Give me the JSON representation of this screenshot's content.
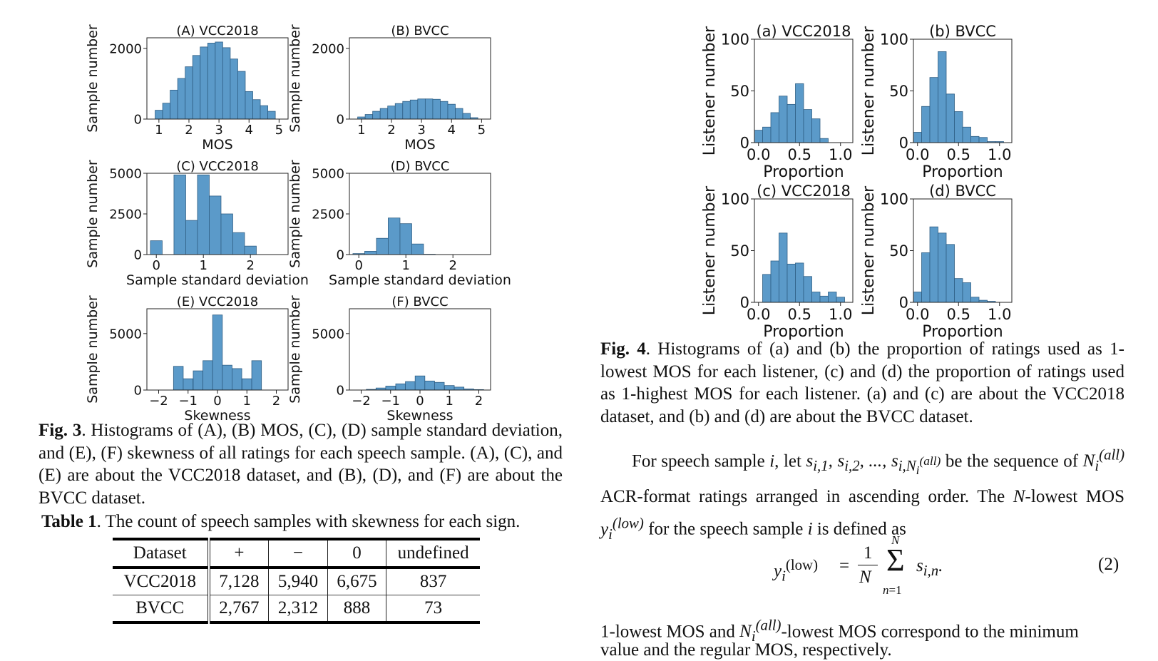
{
  "fig3_panels": [
    {
      "title": "(A) VCC2018",
      "xlabel": "MOS",
      "ylabel": "Sample number",
      "xlim": [
        0.6,
        5.3
      ],
      "ylim": [
        0,
        2300
      ],
      "xticks": [
        1,
        2,
        3,
        4,
        5
      ],
      "xtick_labels": [
        "1",
        "2",
        "3",
        "4",
        "5"
      ],
      "yticks": [
        0,
        2000
      ],
      "ytick_labels": [
        "0",
        "2000"
      ]
    },
    {
      "title": "(B) BVCC",
      "xlabel": "MOS",
      "ylabel": "Sample number",
      "xlim": [
        0.6,
        5.3
      ],
      "ylim": [
        0,
        2300
      ],
      "xticks": [
        1,
        2,
        3,
        4,
        5
      ],
      "xtick_labels": [
        "1",
        "2",
        "3",
        "4",
        "5"
      ],
      "yticks": [
        0,
        2000
      ],
      "ytick_labels": [
        "0",
        "2000"
      ]
    },
    {
      "title": "(C) VCC2018",
      "xlabel": "Sample standard deviation",
      "ylabel": "Sample number",
      "xlim": [
        -0.2,
        2.8
      ],
      "ylim": [
        0,
        5000
      ],
      "xticks": [
        0,
        1,
        2
      ],
      "xtick_labels": [
        "0",
        "1",
        "2"
      ],
      "yticks": [
        0,
        2500,
        5000
      ],
      "ytick_labels": [
        "0",
        "2500",
        "5000"
      ]
    },
    {
      "title": "(D) BVCC",
      "xlabel": "Sample standard deviation",
      "ylabel": "Sample number",
      "xlim": [
        -0.2,
        2.8
      ],
      "ylim": [
        0,
        5000
      ],
      "xticks": [
        0,
        1,
        2
      ],
      "xtick_labels": [
        "0",
        "1",
        "2"
      ],
      "yticks": [
        0,
        2500,
        5000
      ],
      "ytick_labels": [
        "0",
        "2500",
        "5000"
      ]
    },
    {
      "title": "(E) VCC2018",
      "xlabel": "Skewness",
      "ylabel": "Sample number",
      "xlim": [
        -2.4,
        2.4
      ],
      "ylim": [
        0,
        7200
      ],
      "xticks": [
        -2,
        -1,
        0,
        1,
        2
      ],
      "xtick_labels": [
        "−2",
        "−1",
        "0",
        "1",
        "2"
      ],
      "yticks": [
        0,
        5000
      ],
      "ytick_labels": [
        "0",
        "5000"
      ]
    },
    {
      "title": "(F) BVCC",
      "xlabel": "Skewness",
      "ylabel": "Sample number",
      "xlim": [
        -2.4,
        2.4
      ],
      "ylim": [
        0,
        7200
      ],
      "xticks": [
        -2,
        -1,
        0,
        1,
        2
      ],
      "xtick_labels": [
        "−2",
        "−1",
        "0",
        "1",
        "2"
      ],
      "yticks": [
        0,
        5000
      ],
      "ytick_labels": [
        "0",
        "5000"
      ]
    }
  ],
  "fig4_panels": [
    {
      "title": "(a) VCC2018",
      "xlabel": "Proportion",
      "ylabel": "Listener number",
      "xlim": [
        -0.05,
        1.15
      ],
      "ylim": [
        0,
        100
      ],
      "xticks": [
        0,
        0.5,
        1
      ],
      "xtick_labels": [
        "0.0",
        "0.5",
        "1.0"
      ],
      "yticks": [
        0,
        50,
        100
      ],
      "ytick_labels": [
        "0",
        "50",
        "100"
      ]
    },
    {
      "title": "(b) BVCC",
      "xlabel": "Proportion",
      "ylabel": "Listener number",
      "xlim": [
        -0.05,
        1.15
      ],
      "ylim": [
        0,
        100
      ],
      "xticks": [
        0,
        0.5,
        1
      ],
      "xtick_labels": [
        "0.0",
        "0.5",
        "1.0"
      ],
      "yticks": [
        0,
        50,
        100
      ],
      "ytick_labels": [
        "0",
        "50",
        "100"
      ]
    },
    {
      "title": "(c) VCC2018",
      "xlabel": "Proportion",
      "ylabel": "Listener number",
      "xlim": [
        -0.05,
        1.15
      ],
      "ylim": [
        0,
        100
      ],
      "xticks": [
        0,
        0.5,
        1
      ],
      "xtick_labels": [
        "0.0",
        "0.5",
        "1.0"
      ],
      "yticks": [
        0,
        50,
        100
      ],
      "ytick_labels": [
        "0",
        "50",
        "100"
      ]
    },
    {
      "title": "(d) BVCC",
      "xlabel": "Proportion",
      "ylabel": "Listener number",
      "xlim": [
        -0.05,
        1.15
      ],
      "ylim": [
        0,
        100
      ],
      "xticks": [
        0,
        0.5,
        1
      ],
      "xtick_labels": [
        "0.0",
        "0.5",
        "1.0"
      ],
      "yticks": [
        0,
        50,
        100
      ],
      "ytick_labels": [
        "0",
        "50",
        "100"
      ]
    }
  ],
  "chart_data": [
    {
      "type": "bar",
      "panel": "(A) VCC2018",
      "x": [
        1.0,
        1.25,
        1.5,
        1.75,
        2.0,
        2.25,
        2.5,
        2.75,
        3.0,
        3.25,
        3.5,
        3.75,
        4.0,
        4.25,
        4.5,
        4.75
      ],
      "values": [
        250,
        450,
        820,
        1150,
        1480,
        1800,
        2040,
        2150,
        2180,
        2020,
        1700,
        1350,
        780,
        550,
        380,
        220
      ],
      "bin_width": 0.25,
      "ylim": [
        0,
        2300
      ]
    },
    {
      "type": "bar",
      "panel": "(B) BVCC",
      "x": [
        1.0,
        1.25,
        1.5,
        1.75,
        2.0,
        2.25,
        2.5,
        2.75,
        3.0,
        3.25,
        3.5,
        3.75,
        4.0,
        4.25,
        4.5,
        4.75
      ],
      "values": [
        60,
        130,
        220,
        300,
        370,
        440,
        500,
        540,
        570,
        570,
        560,
        500,
        420,
        300,
        160,
        40
      ],
      "bin_width": 0.25,
      "ylim": [
        0,
        2300
      ]
    },
    {
      "type": "bar",
      "panel": "(C) VCC2018",
      "x": [
        0.0,
        0.25,
        0.5,
        0.75,
        1.0,
        1.25,
        1.5,
        1.75,
        2.0,
        2.25,
        2.5
      ],
      "values": [
        850,
        0,
        4900,
        2100,
        4900,
        3600,
        2500,
        1350,
        520,
        0,
        0
      ],
      "bin_width": 0.25,
      "ylim": [
        0,
        5000
      ]
    },
    {
      "type": "bar",
      "panel": "(D) BVCC",
      "x": [
        0.0,
        0.25,
        0.5,
        0.75,
        1.0,
        1.25,
        1.5,
        1.75,
        2.0,
        2.25,
        2.5
      ],
      "values": [
        60,
        200,
        1000,
        2250,
        1900,
        650,
        20,
        0,
        0,
        0,
        0
      ],
      "bin_width": 0.25,
      "ylim": [
        0,
        5000
      ]
    },
    {
      "type": "bar",
      "panel": "(E) VCC2018",
      "x": [
        -2.0,
        -1.66,
        -1.33,
        -1.0,
        -0.66,
        -0.33,
        0.0,
        0.33,
        0.66,
        1.0,
        1.33,
        1.66,
        2.0
      ],
      "values": [
        0,
        0,
        2100,
        1000,
        1700,
        2600,
        6650,
        2200,
        1900,
        1000,
        2600,
        0,
        0
      ],
      "bin_width": 0.33,
      "ylim": [
        0,
        7200
      ]
    },
    {
      "type": "bar",
      "panel": "(F) BVCC",
      "x": [
        -2.0,
        -1.66,
        -1.33,
        -1.0,
        -0.66,
        -0.33,
        0.0,
        0.33,
        0.66,
        1.0,
        1.33,
        1.66,
        2.0
      ],
      "values": [
        0,
        60,
        180,
        350,
        550,
        750,
        1250,
        800,
        680,
        400,
        260,
        100,
        40
      ],
      "bin_width": 0.33,
      "ylim": [
        0,
        7200
      ]
    },
    {
      "type": "bar",
      "panel": "(a) VCC2018",
      "x": [
        0.0,
        0.1,
        0.2,
        0.3,
        0.4,
        0.5,
        0.6,
        0.7,
        0.8,
        0.9,
        1.0
      ],
      "values": [
        12,
        15,
        29,
        45,
        37,
        57,
        32,
        23,
        4,
        0,
        0
      ],
      "bin_width": 0.1,
      "ylim": [
        0,
        100
      ]
    },
    {
      "type": "bar",
      "panel": "(b) BVCC",
      "x": [
        0.0,
        0.1,
        0.2,
        0.3,
        0.4,
        0.5,
        0.6,
        0.7,
        0.8,
        0.9,
        1.0
      ],
      "values": [
        10,
        35,
        63,
        88,
        47,
        30,
        15,
        6,
        5,
        1,
        1
      ],
      "bin_width": 0.1,
      "ylim": [
        0,
        100
      ]
    },
    {
      "type": "bar",
      "panel": "(c) VCC2018",
      "x": [
        0.0,
        0.1,
        0.2,
        0.3,
        0.4,
        0.5,
        0.6,
        0.7,
        0.8,
        0.9,
        1.0
      ],
      "values": [
        0,
        27,
        40,
        67,
        37,
        38,
        25,
        10,
        6,
        10,
        5
      ],
      "bin_width": 0.1,
      "ylim": [
        0,
        100
      ]
    },
    {
      "type": "bar",
      "panel": "(d) BVCC",
      "x": [
        0.0,
        0.1,
        0.2,
        0.3,
        0.4,
        0.5,
        0.6,
        0.7,
        0.8,
        0.9,
        1.0
      ],
      "values": [
        10,
        48,
        73,
        67,
        56,
        23,
        19,
        5,
        2,
        1,
        0
      ],
      "bin_width": 0.1,
      "ylim": [
        0,
        100
      ]
    }
  ],
  "fig3_caption": {
    "label": "Fig. 3",
    "text": ". Histograms of (A), (B) MOS, (C), (D) sample standard deviation, and (E), (F) skewness of all ratings for each speech sample. (A), (C), and (E) are about the VCC2018 dataset, and (B), (D), and (F) are about the BVCC dataset."
  },
  "table1": {
    "label": "Table 1",
    "caption": ". The count of speech samples with skewness for each sign.",
    "headers": [
      "Dataset",
      "+",
      "−",
      "0",
      "undefined"
    ],
    "rows": [
      [
        "VCC2018",
        "7,128",
        "5,940",
        "6,675",
        "837"
      ],
      [
        "BVCC",
        "2,767",
        "2,312",
        "888",
        "73"
      ]
    ]
  },
  "fig4_caption": {
    "label": "Fig. 4",
    "text": ". Histograms of (a) and (b) the proportion of ratings used as 1-lowest MOS for each listener, (c) and (d) the proportion of ratings used as 1-highest MOS for each listener. (a) and (c) are about the VCC2018 dataset, and (b) and (d) are about the BVCC dataset."
  },
  "body": {
    "p1_a": "For speech sample ",
    "p1_b": ", let ",
    "p1_c": " be the sequence of ",
    "p1_d": " ACR-format ratings arranged in ascending order. The ",
    "p1_e": "-lowest MOS ",
    "p1_f": " for the speech sample ",
    "p1_g": " is defined as",
    "eq_number": "(2)",
    "p2_a": "1-lowest MOS and ",
    "p2_b": "-lowest MOS correspond to the minimum",
    "p2_c": "value and the regular MOS, respectively."
  },
  "colors": {
    "bar_fill": "#5b9ac9",
    "bar_edge": "#2f5e84",
    "axis": "#222222"
  }
}
